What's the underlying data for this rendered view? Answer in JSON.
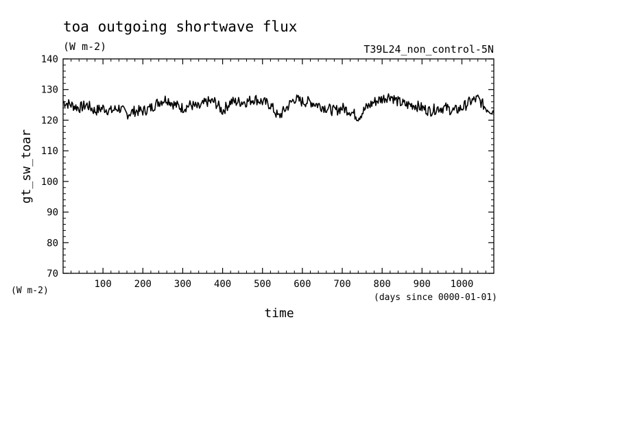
{
  "chart_data": {
    "type": "line",
    "title": "toa outgoing shortwave flux",
    "subtitle": "(W m-2)",
    "run_label": "T39L24_non_control-5N",
    "xlabel": "time",
    "x_units": "(days since 0000-01-01)",
    "ylabel": "gt_sw_toar",
    "y_units": "(W m-2)",
    "xlim": [
      0,
      1080
    ],
    "ylim": [
      70,
      140
    ],
    "x_ticks": [
      100,
      200,
      300,
      400,
      500,
      600,
      700,
      800,
      900,
      1000
    ],
    "x_tick_labels": [
      "100",
      "200",
      "300",
      "400",
      "500",
      "600",
      "700",
      "800",
      "900",
      "1000"
    ],
    "y_ticks": [
      70,
      80,
      90,
      100,
      110,
      120,
      130,
      140
    ],
    "y_tick_labels": [
      "70",
      "80",
      "90",
      "100",
      "110",
      "120",
      "130",
      "140"
    ],
    "grid": false,
    "legend": "none",
    "series": [
      {
        "color": "#000000",
        "x": [
          0,
          20,
          40,
          60,
          80,
          100,
          120,
          140,
          160,
          180,
          200,
          220,
          240,
          260,
          280,
          300,
          320,
          340,
          360,
          380,
          400,
          420,
          440,
          460,
          480,
          500,
          520,
          540,
          560,
          580,
          600,
          620,
          640,
          660,
          680,
          700,
          720,
          740,
          760,
          780,
          800,
          820,
          840,
          860,
          880,
          900,
          920,
          940,
          960,
          980,
          1000,
          1020,
          1040,
          1060,
          1080
        ],
        "y": [
          126,
          125,
          124,
          125,
          123,
          124,
          123,
          124,
          122,
          123,
          123,
          124,
          126,
          127,
          125,
          124,
          125,
          124,
          126,
          126,
          123,
          126,
          126,
          126,
          127,
          126,
          125,
          121,
          124,
          127,
          126,
          126,
          125,
          124,
          123,
          124,
          123,
          121,
          124,
          126,
          127,
          128,
          126,
          125,
          125,
          124,
          123,
          124,
          124,
          123,
          124,
          126,
          127,
          124,
          123
        ]
      }
    ]
  }
}
